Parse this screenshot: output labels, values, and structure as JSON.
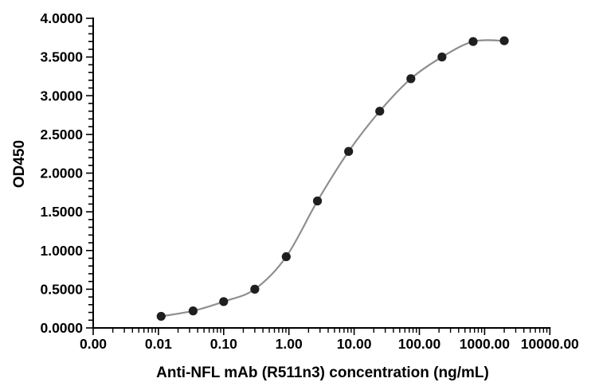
{
  "chart_data": {
    "type": "scatter",
    "title": "",
    "xlabel": "Anti-NFL mAb (R511n3) concentration (ng/mL)",
    "ylabel": "OD450",
    "x_scale": "log",
    "x_decade_range": [
      -3,
      4
    ],
    "ylim": [
      0,
      4
    ],
    "y_major_step": 0.5,
    "y_minor_step": 0.1,
    "x_tick_labels": [
      "0.00",
      "0.01",
      "0.10",
      "1.00",
      "10.00",
      "100.00",
      "1000.00",
      "10000.00"
    ],
    "y_tick_labels": [
      "0.0000",
      "0.5000",
      "1.0000",
      "1.5000",
      "2.0000",
      "2.5000",
      "3.0000",
      "3.5000",
      "4.0000"
    ],
    "grid": "off",
    "legend": "none",
    "series_name": "Anti-NFL mAb (R511n3)",
    "points": [
      {
        "x": 0.011,
        "y": 0.15
      },
      {
        "x": 0.034,
        "y": 0.22
      },
      {
        "x": 0.1,
        "y": 0.34
      },
      {
        "x": 0.3,
        "y": 0.5
      },
      {
        "x": 0.91,
        "y": 0.92
      },
      {
        "x": 2.74,
        "y": 1.64
      },
      {
        "x": 8.23,
        "y": 2.28
      },
      {
        "x": 24.7,
        "y": 2.8
      },
      {
        "x": 74.1,
        "y": 3.22
      },
      {
        "x": 222,
        "y": 3.5
      },
      {
        "x": 667,
        "y": 3.7
      },
      {
        "x": 2000,
        "y": 3.71
      }
    ],
    "colors": {
      "marker": "#1f1f1f",
      "line": "#8f8f8f",
      "axis": "#000000",
      "text": "#000000",
      "background": "#ffffff"
    }
  }
}
